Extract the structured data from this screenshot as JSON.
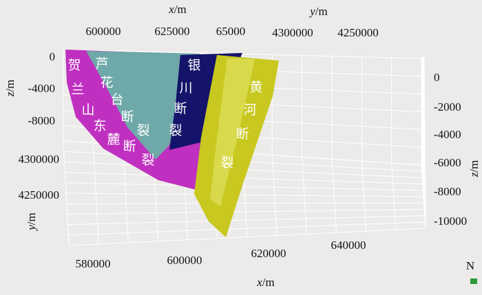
{
  "axes": {
    "top_x": {
      "var": "x",
      "unit": "/m",
      "ticks": [
        "600000",
        "625000",
        "65000"
      ]
    },
    "top_y": {
      "var": "y",
      "unit": "/m",
      "ticks": [
        "4300000",
        "4250000"
      ]
    },
    "left_z": {
      "var": "z",
      "unit": "/m",
      "ticks": [
        "0",
        "-4000",
        "-8000"
      ]
    },
    "left_y": {
      "var": "y",
      "unit": "/m",
      "ticks": [
        "4300000",
        "4250000"
      ]
    },
    "bottom_x": {
      "var": "x",
      "unit": "/m",
      "ticks": [
        "580000",
        "600000",
        "620000",
        "640000"
      ]
    },
    "right_z": {
      "var": "z",
      "unit": "/m",
      "ticks": [
        "0",
        "-2000",
        "-4000",
        "-6000",
        "-8000",
        "-10000"
      ]
    }
  },
  "faults": [
    "贺兰山东麓断裂",
    "芦花台断裂",
    "银川断裂",
    "黄河断裂"
  ],
  "compass": "N"
}
